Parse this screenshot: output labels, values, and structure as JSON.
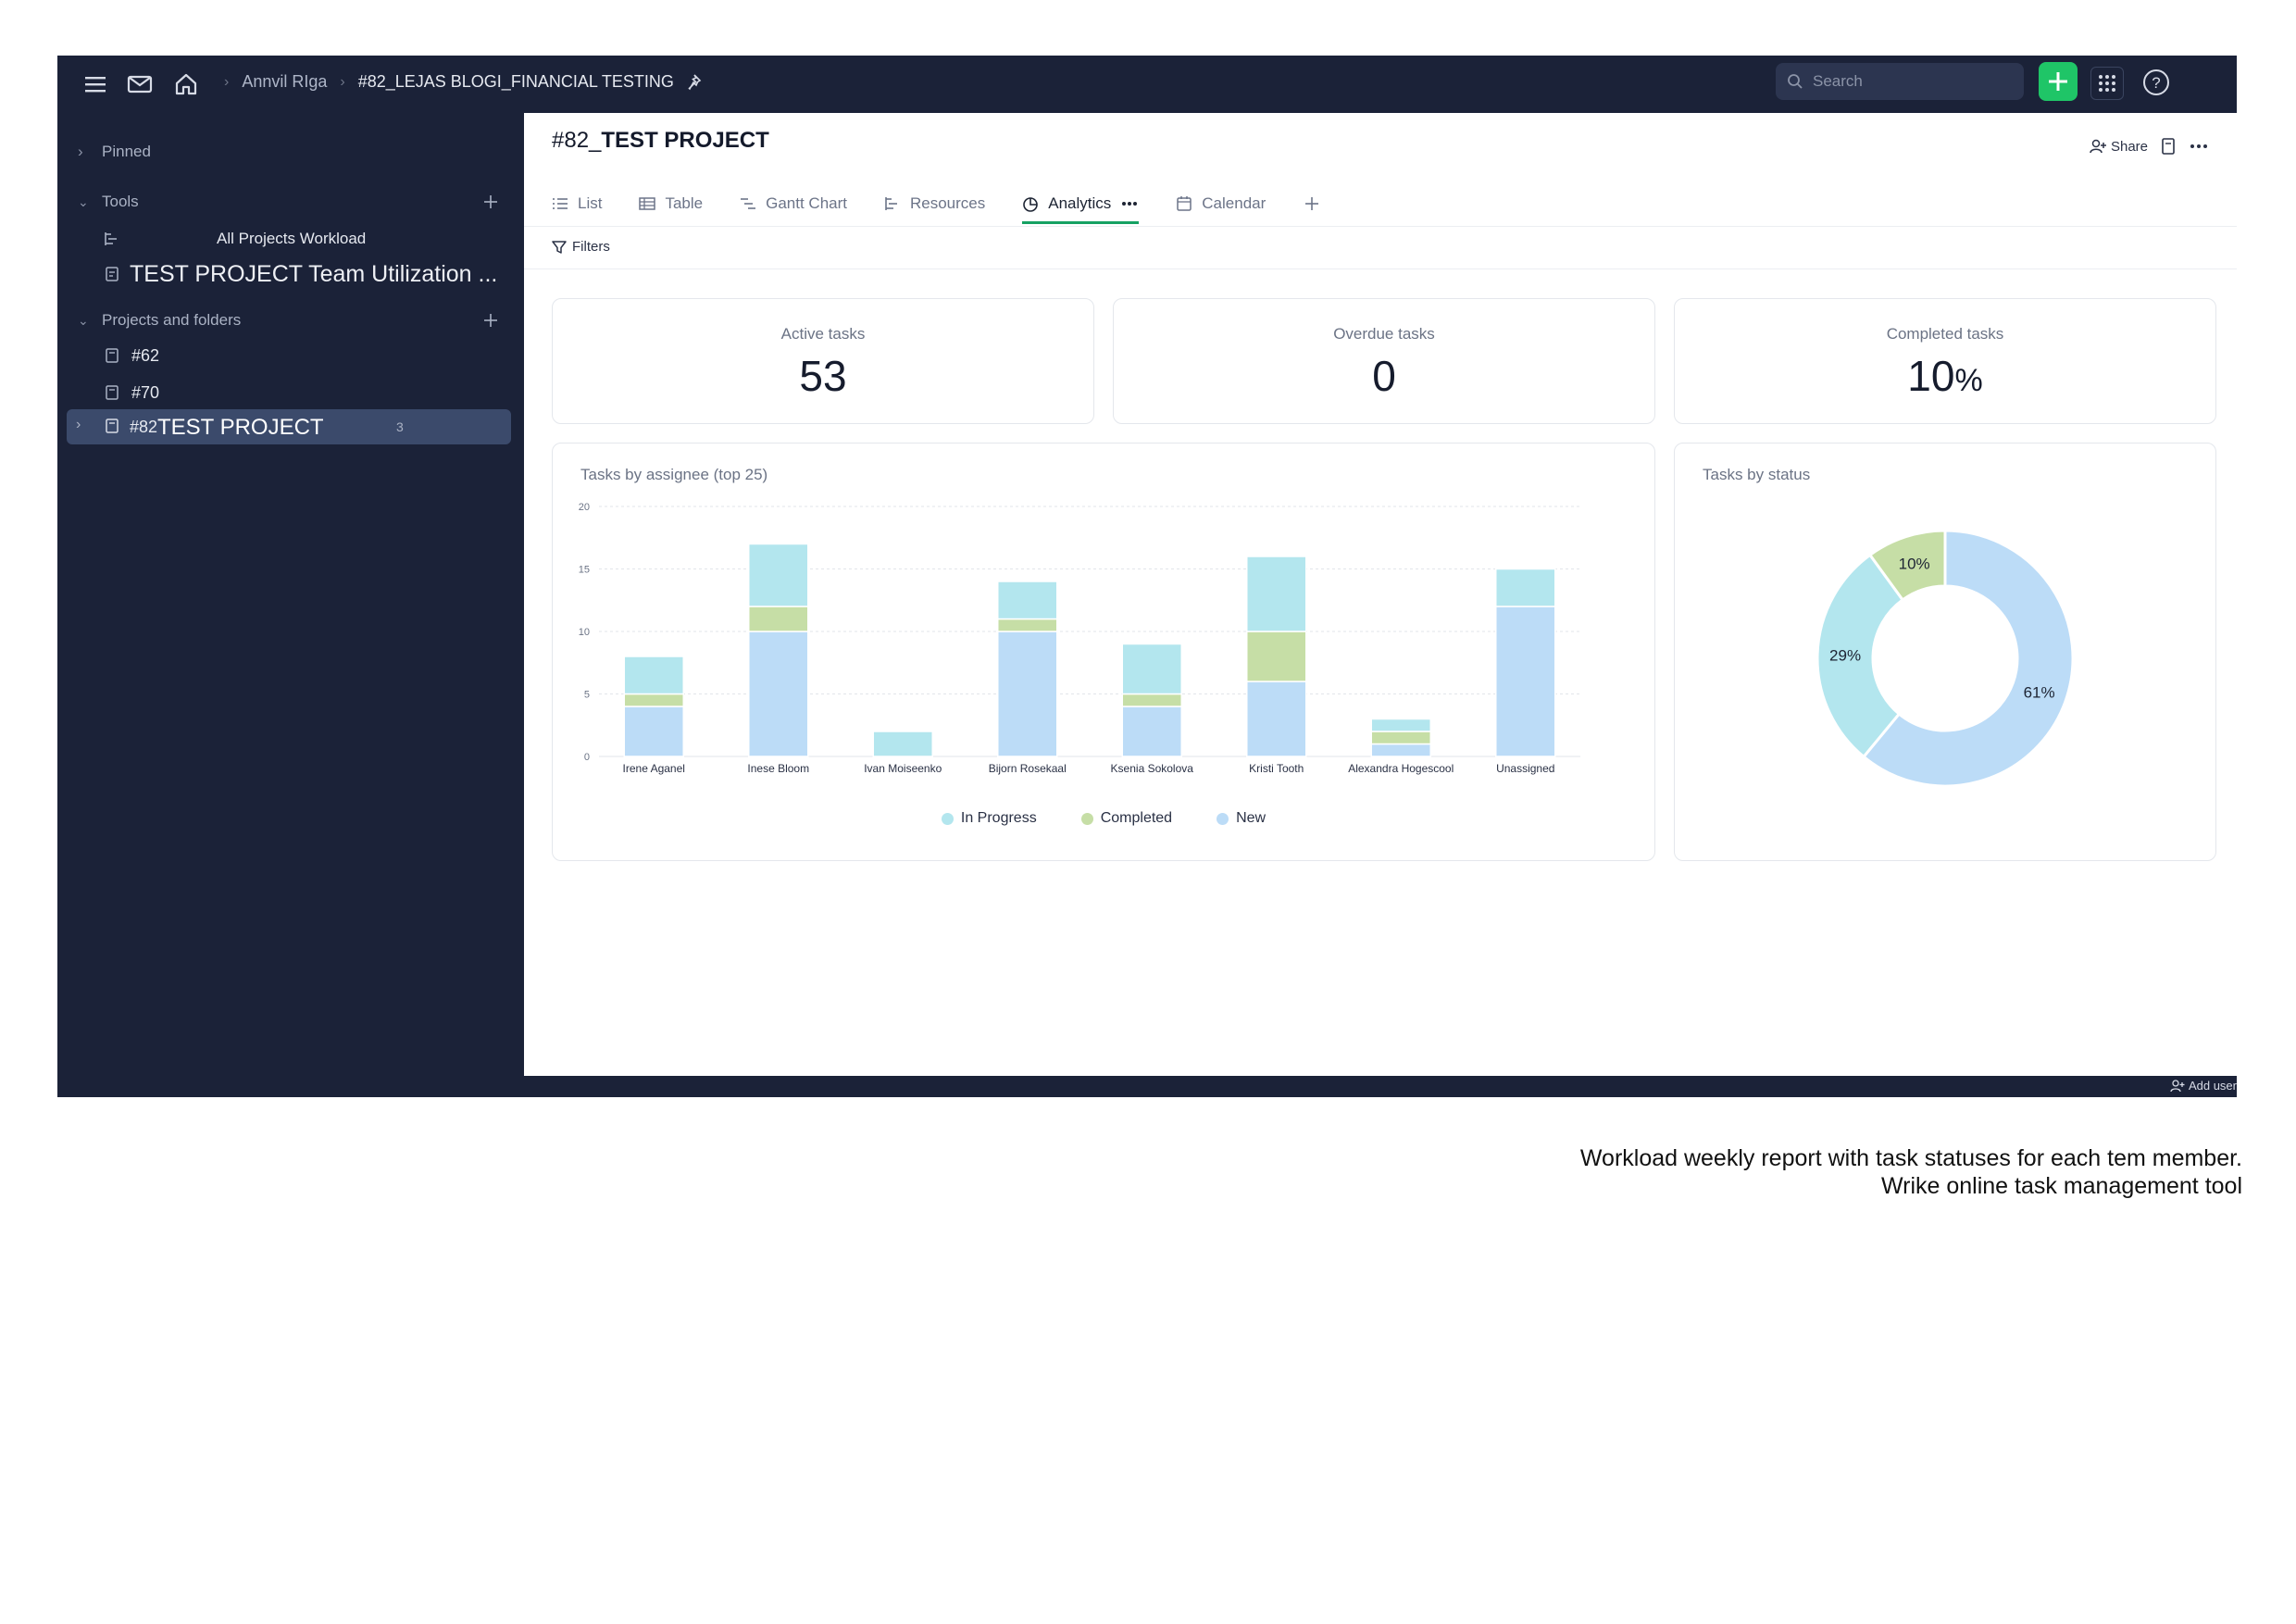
{
  "topbar": {
    "breadcrumb_user": "Annvil RIga",
    "breadcrumb_project": "#82_LEJAS BLOGI_FINANCIAL TESTING",
    "search_placeholder": "Search"
  },
  "sidebar": {
    "pinned_label": "Pinned",
    "tools_label": "Tools",
    "tools_items": [
      "All Projects Workload",
      "TEST PROJECT Team Utilization ..."
    ],
    "projects_label": "Projects and folders",
    "project_items": [
      "#62",
      "#70"
    ],
    "selected_prefix": "#82",
    "selected_name": "TEST PROJECT",
    "selected_badge": "3"
  },
  "main": {
    "title_prefix": "#82_",
    "title_bold": "TEST PROJECT",
    "share_label": "Share",
    "tabs": [
      "List",
      "Table",
      "Gantt Chart",
      "Resources",
      "Analytics",
      "Calendar"
    ],
    "filters_label": "Filters"
  },
  "stats": {
    "active_label": "Active tasks",
    "active_value": "53",
    "overdue_label": "Overdue tasks",
    "overdue_value": "0",
    "completed_label": "Completed tasks",
    "completed_value": "10",
    "completed_unit": "%"
  },
  "colors": {
    "in_progress": "#b3e6ee",
    "completed": "#c6dea6",
    "new": "#bcdcf7",
    "accent_green": "#1fc567",
    "sidebar_bg": "#1b2238"
  },
  "chart_data": [
    {
      "type": "bar",
      "stacked": true,
      "title": "Tasks by assignee (top 25)",
      "categories": [
        "Irene Aganel",
        "Inese Bloom",
        "Ivan Moiseenko",
        "Bijorn Rosekaal",
        "Ksenia Sokolova",
        "Kristi Tooth",
        "Alexandra Hogescool",
        "Unassigned"
      ],
      "series": [
        {
          "name": "New",
          "values": [
            4,
            10,
            0,
            10,
            4,
            6,
            1,
            12
          ]
        },
        {
          "name": "Completed",
          "values": [
            1,
            2,
            0,
            1,
            1,
            4,
            1,
            0
          ]
        },
        {
          "name": "In Progress",
          "values": [
            3,
            5,
            2,
            3,
            4,
            6,
            1,
            3
          ]
        }
      ],
      "ylim": [
        0,
        20
      ],
      "yticks": [
        0,
        5,
        10,
        15,
        20
      ],
      "legend": [
        "In Progress",
        "Completed",
        "New"
      ],
      "legend_position": "bottom"
    },
    {
      "type": "pie",
      "donut": true,
      "title": "Tasks by status",
      "labels": [
        "New",
        "In Progress",
        "Completed"
      ],
      "values": [
        61,
        29,
        10
      ],
      "value_labels": [
        "61%",
        "29%",
        "10%"
      ]
    }
  ],
  "caption": {
    "line1": "Workload weekly report with task statuses for each tem member.",
    "line2": "Wrike online task management tool"
  },
  "footer": {
    "add_user_label": "Add user"
  }
}
